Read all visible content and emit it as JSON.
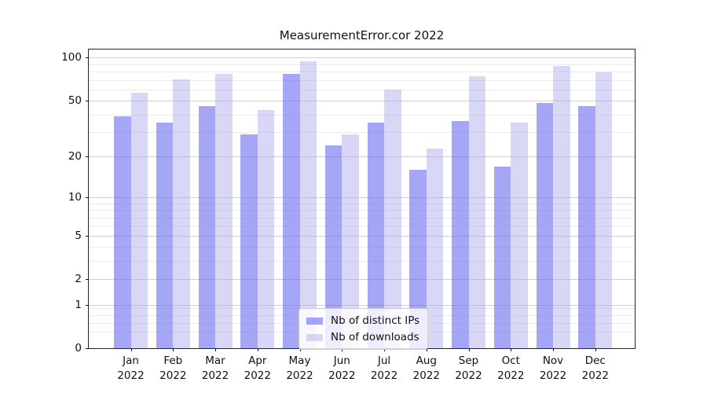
{
  "title": "MeasurementError.cor 2022",
  "chart_data": {
    "type": "bar",
    "scale": "log1p",
    "title": "MeasurementError.cor 2022",
    "categories": [
      "Jan",
      "Feb",
      "Mar",
      "Apr",
      "May",
      "Jun",
      "Jul",
      "Aug",
      "Sep",
      "Oct",
      "Nov",
      "Dec"
    ],
    "year_label": "2022",
    "series": [
      {
        "name": "Nb of distinct IPs",
        "color": "rgba(107,107,240,0.6)",
        "values": [
          39,
          35,
          46,
          29,
          77,
          24,
          35,
          16,
          36,
          17,
          48,
          46
        ]
      },
      {
        "name": "Nb of downloads",
        "color": "rgba(168,168,235,0.45)",
        "values": [
          57,
          71,
          77,
          43,
          94,
          29,
          60,
          23,
          74,
          35,
          88,
          79
        ]
      }
    ],
    "y_ticks": [
      100,
      50,
      20,
      10,
      5,
      2,
      1,
      0
    ],
    "y_minor_gridlines": [
      0.3,
      0.5,
      0.7,
      0.9,
      3,
      4,
      6,
      7,
      8,
      9,
      30,
      40,
      60,
      70,
      80,
      90
    ],
    "ylim": [
      0,
      114
    ],
    "xlabel": "",
    "ylabel": "",
    "grid": true,
    "legend_position": "lower center"
  },
  "colors": {
    "background": "#ffffff",
    "text": "#111111",
    "spine": "#262626",
    "grid_major": "#cfcfcf",
    "grid_minor": "#ececec",
    "bar_distinct_ips": "rgba(107,107,240,0.6)",
    "bar_downloads": "rgba(168,168,235,0.45)",
    "legend_border": "#cccccc",
    "legend_background": "rgba(255,255,255,0.8)"
  }
}
